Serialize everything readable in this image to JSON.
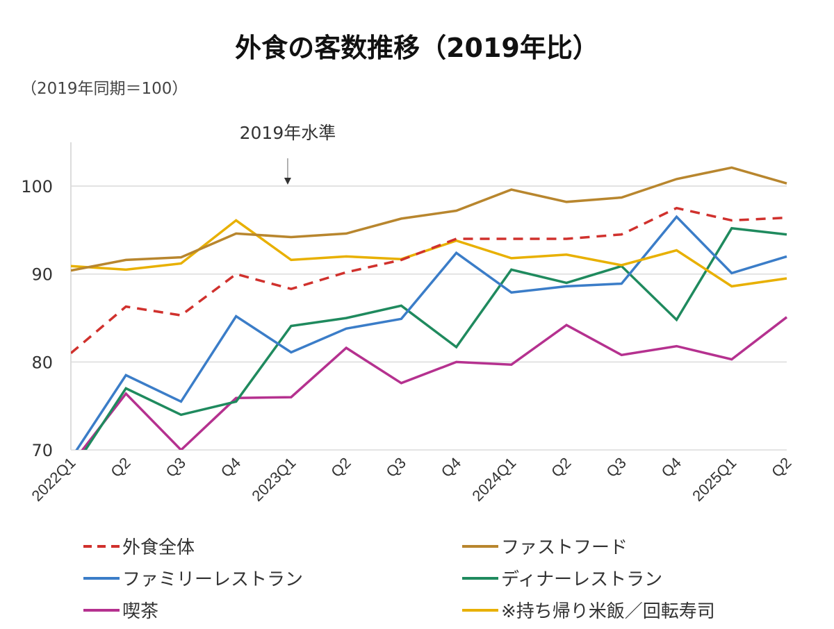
{
  "chart_data": {
    "type": "line",
    "title": "外食の客数推移（2019年比）",
    "ylabel": "（2019年同期＝100）",
    "xlabel": "",
    "ylim": [
      70,
      105
    ],
    "yticks": [
      70,
      80,
      90,
      100
    ],
    "grid": true,
    "annotation": {
      "text": "2019年水準",
      "x_category": "2023Q1",
      "points_to_y": 100
    },
    "categories": [
      "2022Q1",
      "Q2",
      "Q3",
      "Q4",
      "2023Q1",
      "Q2",
      "Q3",
      "Q4",
      "2024Q1",
      "Q2",
      "Q3",
      "Q4",
      "2025Q1",
      "Q2"
    ],
    "legend_position": "bottom",
    "series": [
      {
        "name": "外食全体",
        "color": "#d0312d",
        "dashed": true,
        "values": [
          81.0,
          86.3,
          85.3,
          90.0,
          88.3,
          90.2,
          91.6,
          94.0,
          94.0,
          94.0,
          94.5,
          97.5,
          96.1,
          96.4
        ]
      },
      {
        "name": "ファストフード",
        "color": "#b8862e",
        "dashed": false,
        "values": [
          90.4,
          91.6,
          91.9,
          94.6,
          94.2,
          94.6,
          96.3,
          97.2,
          99.6,
          98.2,
          98.7,
          100.8,
          102.1,
          100.3
        ]
      },
      {
        "name": "ファミリーレストラン",
        "color": "#3b7dc8",
        "dashed": false,
        "values": [
          69.0,
          78.5,
          75.5,
          85.2,
          81.1,
          83.8,
          84.9,
          92.4,
          87.9,
          88.6,
          88.9,
          96.5,
          90.1,
          92.0
        ]
      },
      {
        "name": "ディナーレストラン",
        "color": "#1f8a5e",
        "dashed": false,
        "values": [
          67.5,
          77.0,
          74.0,
          75.5,
          84.1,
          85.0,
          86.4,
          81.7,
          90.5,
          89.0,
          90.9,
          84.8,
          95.2,
          94.5
        ]
      },
      {
        "name": "喫茶",
        "color": "#b5318f",
        "dashed": false,
        "values": [
          68.3,
          76.4,
          70.0,
          75.9,
          76.0,
          81.6,
          77.6,
          80.0,
          79.7,
          84.2,
          80.8,
          81.8,
          80.3,
          85.1
        ]
      },
      {
        "name": "※持ち帰り米飯／回転寿司",
        "color": "#e8b000",
        "dashed": false,
        "values": [
          90.9,
          90.5,
          91.2,
          96.1,
          91.6,
          92.0,
          91.7,
          93.8,
          91.8,
          92.2,
          91.0,
          92.7,
          88.6,
          89.5
        ]
      }
    ]
  }
}
